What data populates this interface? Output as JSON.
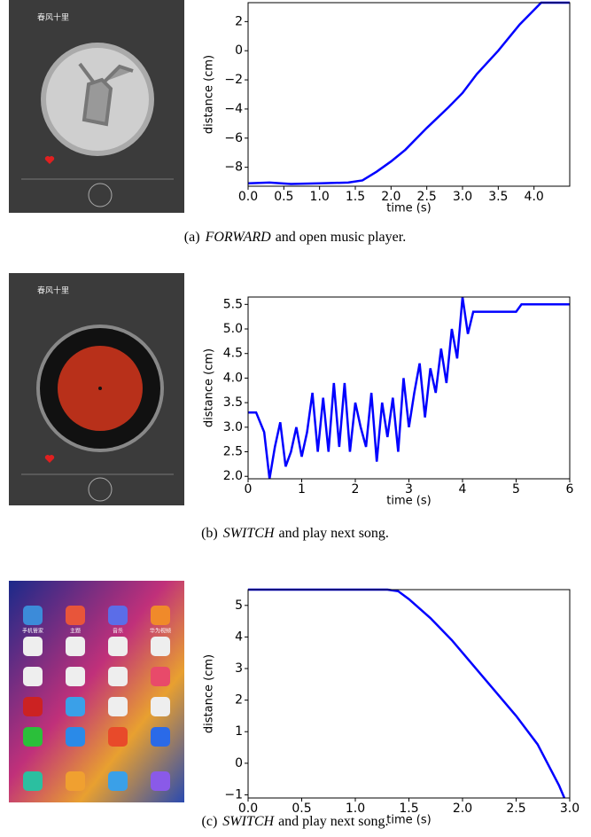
{
  "chart_data": [
    {
      "type": "line",
      "xlabel": "time (s)",
      "ylabel": "distance (cm)",
      "color": "#0000ff",
      "xlim": [
        0,
        4.5
      ],
      "ylim": [
        -9.3,
        3.3
      ],
      "xticks": [
        {
          "value": 0,
          "label": "0.0"
        },
        {
          "value": 0.5,
          "label": "0.5"
        },
        {
          "value": 1,
          "label": "1.0"
        },
        {
          "value": 1.5,
          "label": "1.5"
        },
        {
          "value": 2,
          "label": "2.0"
        },
        {
          "value": 2.5,
          "label": "2.5"
        },
        {
          "value": 3,
          "label": "3.0"
        },
        {
          "value": 3.5,
          "label": "3.5"
        },
        {
          "value": 4,
          "label": "4.0"
        }
      ],
      "yticks": [
        {
          "value": -8,
          "label": "−8"
        },
        {
          "value": -6,
          "label": "−6"
        },
        {
          "value": -4,
          "label": "−4"
        },
        {
          "value": -2,
          "label": "−2"
        },
        0,
        2
      ],
      "x": [
        0,
        0.3,
        0.6,
        1.0,
        1.4,
        1.6,
        1.8,
        2.0,
        2.2,
        2.5,
        2.8,
        3.0,
        3.2,
        3.5,
        3.8,
        4.0,
        4.1,
        4.5
      ],
      "values": [
        -9.1,
        -9.05,
        -9.15,
        -9.1,
        -9.05,
        -8.9,
        -8.3,
        -7.6,
        -6.8,
        -5.3,
        -3.9,
        -2.9,
        -1.6,
        0.0,
        1.8,
        2.8,
        3.3,
        3.3
      ]
    },
    {
      "type": "line",
      "xlabel": "time (s)",
      "ylabel": "distance (cm)",
      "color": "#0000ff",
      "xlim": [
        0,
        6
      ],
      "ylim": [
        1.95,
        5.65
      ],
      "xticks": [
        0,
        1,
        2,
        3,
        4,
        5,
        6
      ],
      "yticks": [
        {
          "value": 2,
          "label": "2.0"
        },
        2.5,
        {
          "value": 3,
          "label": "3.0"
        },
        3.5,
        {
          "value": 4,
          "label": "4.0"
        },
        4.5,
        {
          "value": 5,
          "label": "5.0"
        },
        5.5
      ],
      "x": [
        0,
        0.15,
        0.3,
        0.4,
        0.5,
        0.6,
        0.7,
        0.8,
        0.9,
        1.0,
        1.1,
        1.2,
        1.3,
        1.4,
        1.5,
        1.6,
        1.7,
        1.8,
        1.9,
        2.0,
        2.1,
        2.2,
        2.3,
        2.4,
        2.5,
        2.6,
        2.7,
        2.8,
        2.9,
        3.0,
        3.1,
        3.2,
        3.3,
        3.4,
        3.5,
        3.6,
        3.7,
        3.8,
        3.9,
        4.0,
        4.1,
        4.2,
        4.5,
        4.9,
        5.0,
        5.1,
        5.5,
        6.0
      ],
      "values": [
        3.3,
        3.3,
        2.9,
        1.95,
        2.6,
        3.1,
        2.2,
        2.5,
        3.0,
        2.4,
        2.9,
        3.7,
        2.5,
        3.6,
        2.5,
        3.9,
        2.6,
        3.9,
        2.5,
        3.5,
        3.0,
        2.6,
        3.7,
        2.3,
        3.5,
        2.8,
        3.6,
        2.5,
        4.0,
        3.0,
        3.7,
        4.3,
        3.2,
        4.2,
        3.7,
        4.6,
        3.9,
        5.0,
        4.4,
        5.65,
        4.9,
        5.35,
        5.35,
        5.35,
        5.35,
        5.5,
        5.5,
        5.5
      ]
    },
    {
      "type": "line",
      "xlabel": "time (s)",
      "ylabel": "distance (cm)",
      "color": "#0000ff",
      "xlim": [
        0,
        3
      ],
      "ylim": [
        -1.1,
        5.5
      ],
      "xticks": [
        {
          "value": 0,
          "label": "0.0"
        },
        {
          "value": 0.5,
          "label": "0.5"
        },
        {
          "value": 1,
          "label": "1.0"
        },
        {
          "value": 1.5,
          "label": "1.5"
        },
        {
          "value": 2,
          "label": "2.0"
        },
        {
          "value": 2.5,
          "label": "2.5"
        },
        {
          "value": 3,
          "label": "3.0"
        }
      ],
      "yticks": [
        {
          "value": -1,
          "label": "−1"
        },
        0,
        1,
        2,
        3,
        4,
        5
      ],
      "x": [
        0,
        0.5,
        1.0,
        1.3,
        1.4,
        1.5,
        1.7,
        1.9,
        2.1,
        2.3,
        2.5,
        2.7,
        2.9,
        2.95
      ],
      "values": [
        5.5,
        5.5,
        5.5,
        5.5,
        5.45,
        5.2,
        4.6,
        3.9,
        3.1,
        2.3,
        1.5,
        0.6,
        -0.7,
        -1.1
      ]
    }
  ],
  "captions": [
    {
      "label": "(a)",
      "keyword": "FORWARD",
      "text": "and open music player."
    },
    {
      "label": "(b)",
      "keyword": "SWITCH",
      "text": "and play next song."
    },
    {
      "label": "(c)",
      "keyword": "SWITCH",
      "text": "and play next song."
    }
  ],
  "screenshots": [
    {
      "title": "春风十里"
    },
    {
      "title": "春风十里"
    },
    {
      "apps": [
        "手机管家",
        "主题",
        "音乐",
        "华为视频"
      ]
    }
  ]
}
